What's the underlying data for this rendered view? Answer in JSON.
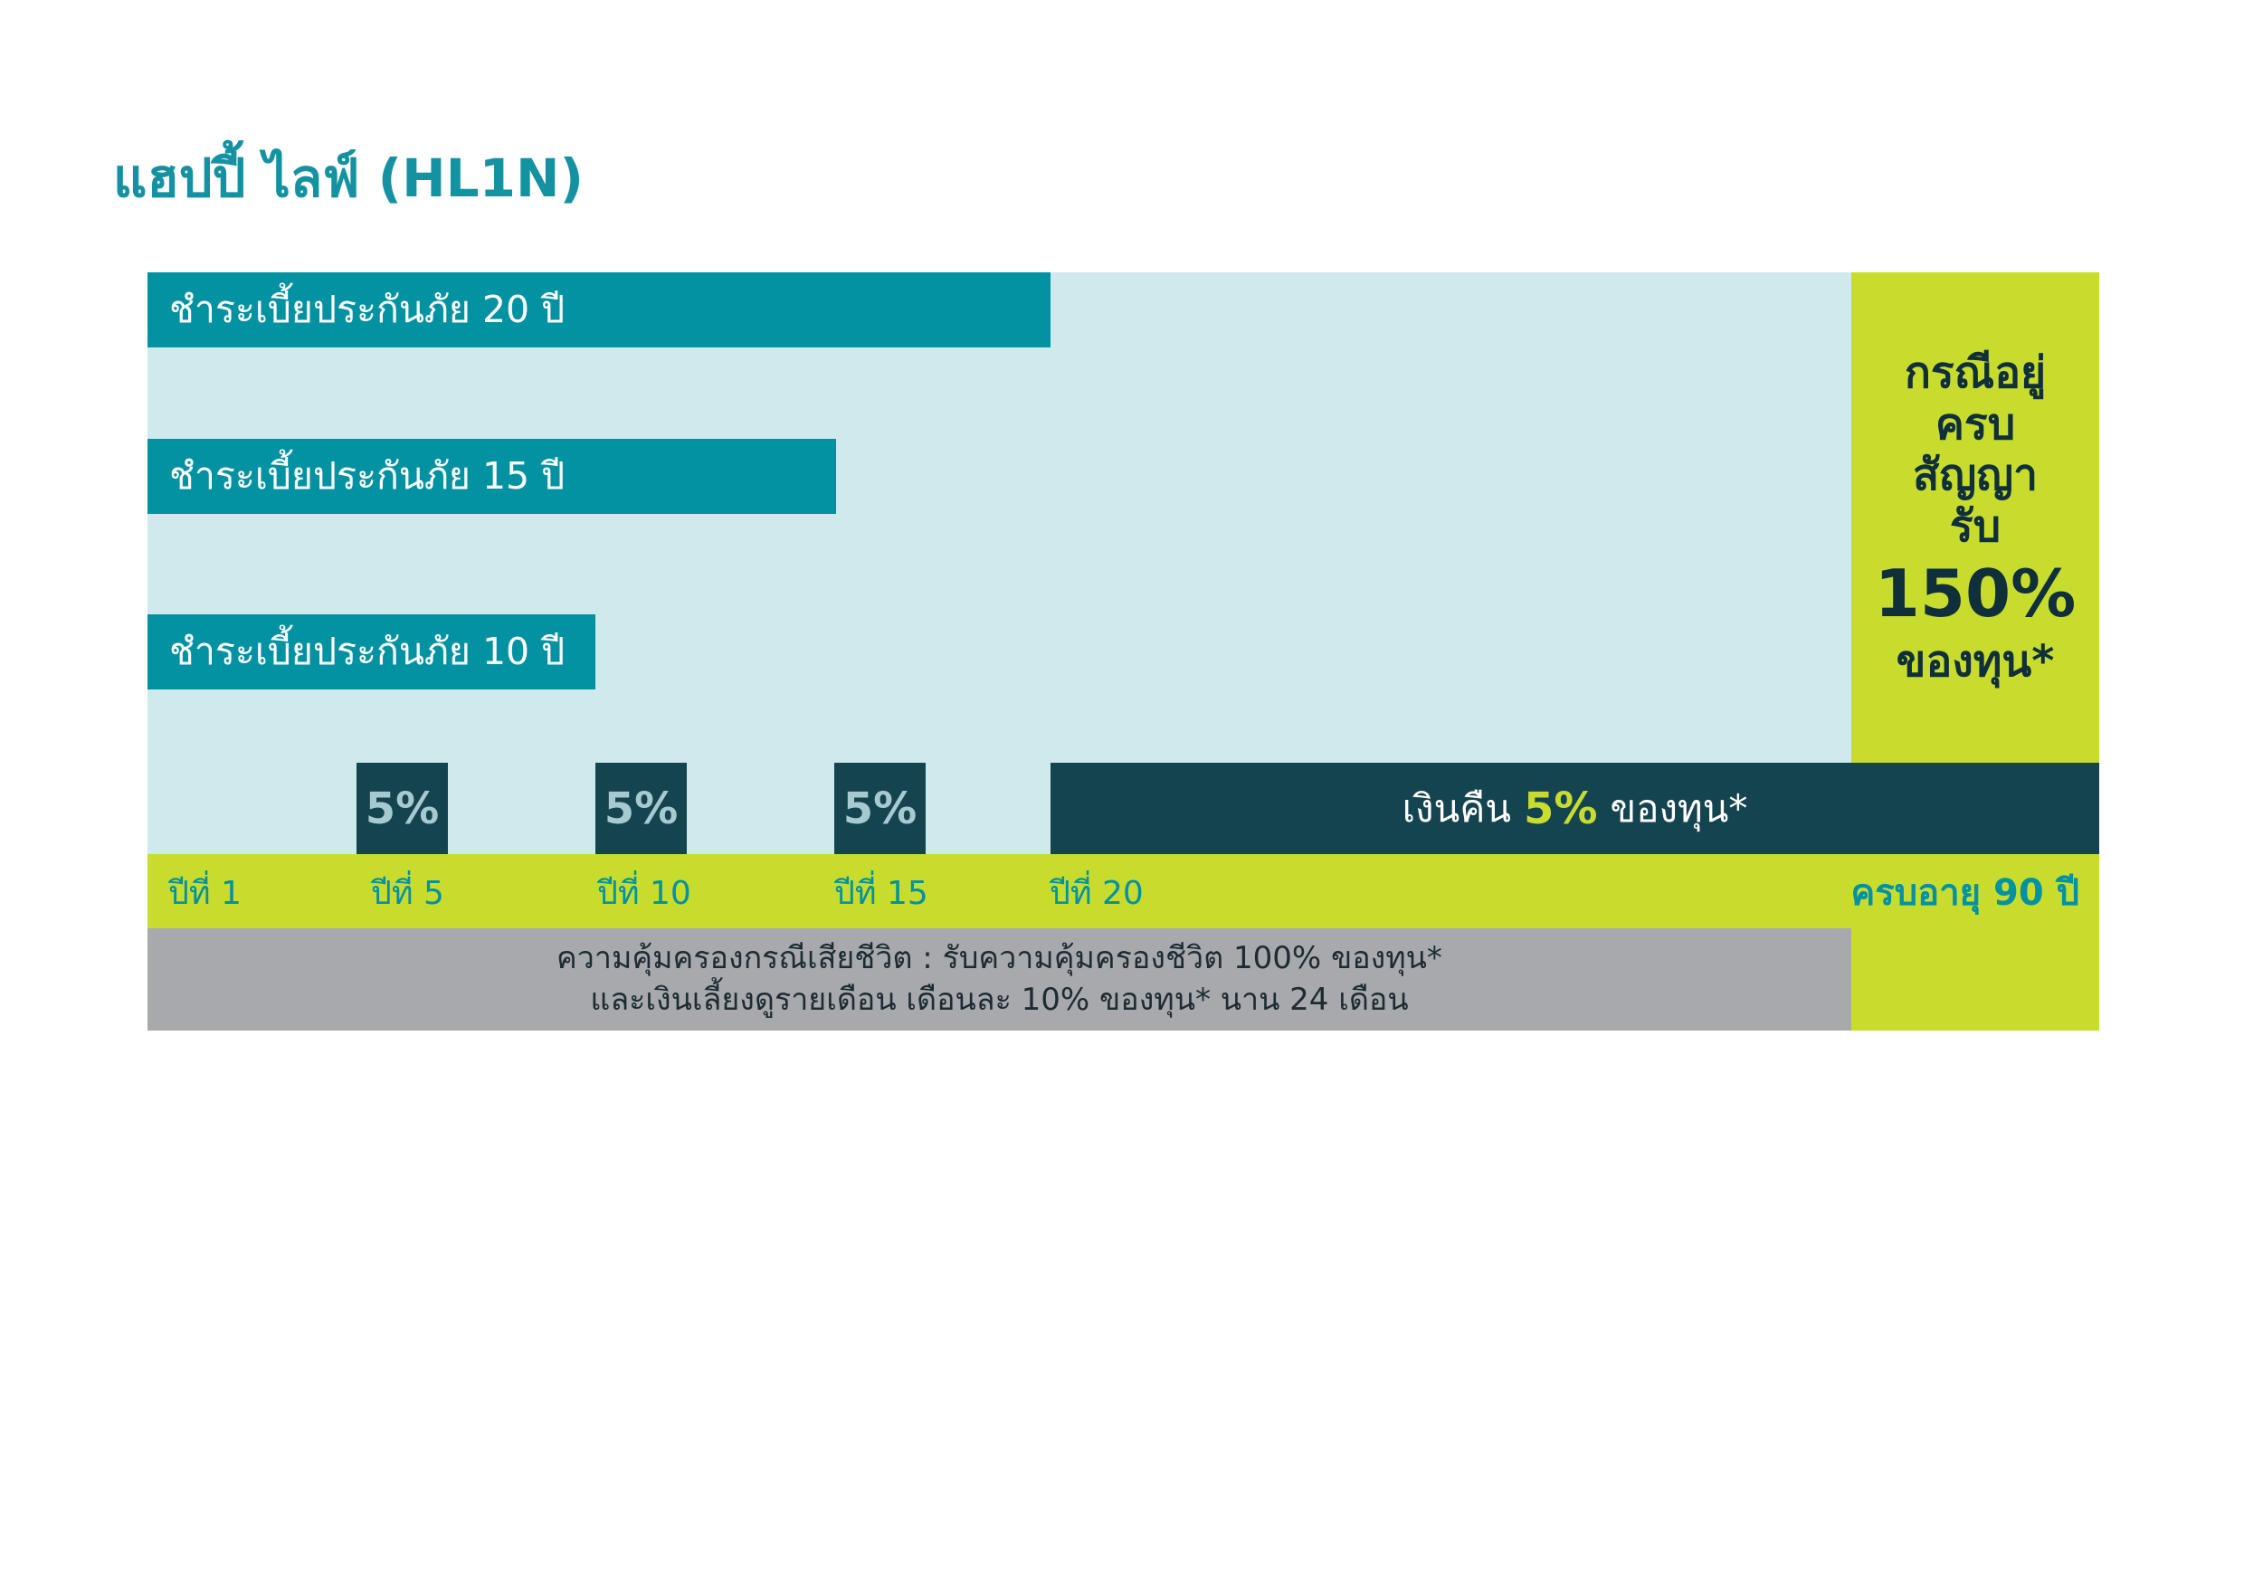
{
  "title": "แฮปปี้ ไลฟ์ (HL1N)",
  "premium_bars": [
    {
      "label": "ชำระเบี้ยประกันภัย 20 ปี",
      "years": 20
    },
    {
      "label": "ชำระเบี้ยประกันภัย 15 ปี",
      "years": 15
    },
    {
      "label": "ชำระเบี้ยประกันภัย 10 ปี",
      "years": 10
    }
  ],
  "milestone_boxes": [
    {
      "year": 5,
      "label": "5%"
    },
    {
      "year": 10,
      "label": "5%"
    },
    {
      "year": 15,
      "label": "5%"
    }
  ],
  "refund": {
    "prefix": "เงินคืน",
    "pct": "5%",
    "suffix": "ของทุน*"
  },
  "maturity": {
    "line1": "กรณีอยู่",
    "line2": "ครบ",
    "line3": "สัญญา",
    "line4": "รับ",
    "big": "150%",
    "line5": "ของทุน*"
  },
  "timeline": {
    "labels": [
      "ปีที่ 1",
      "ปีที่ 5",
      "ปีที่ 10",
      "ปีที่ 15",
      "ปีที่ 20"
    ],
    "end_label": "ครบอายุ 90 ปี"
  },
  "death_benefit": {
    "line1": "ความคุ้มครองกรณีเสียชีวิต : รับความคุ้มครองชีวิต 100% ของทุน*",
    "line2": "และเงินเลี้ยงดูรายเดือน เดือนละ 10% ของทุน* นาน 24 เดือน"
  },
  "colors": {
    "teal": "#0292a1",
    "light_teal": "#cfeaec",
    "dark_navy": "#154451",
    "lime": "#c8dc2e",
    "grey": "#a7a9ac"
  }
}
